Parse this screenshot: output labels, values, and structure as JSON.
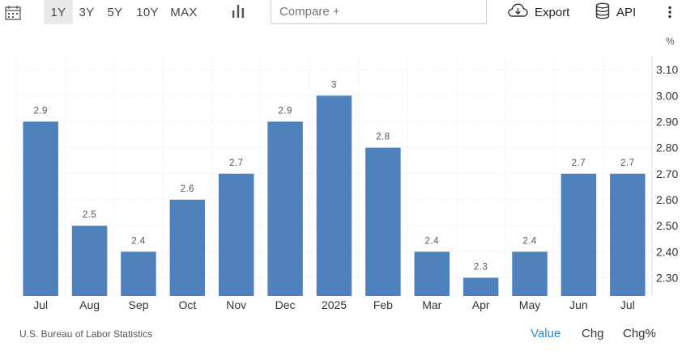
{
  "toolbar": {
    "calendar_icon": "calendar-icon",
    "ranges": [
      {
        "label": "1Y",
        "active": true
      },
      {
        "label": "3Y",
        "active": false
      },
      {
        "label": "5Y",
        "active": false
      },
      {
        "label": "10Y",
        "active": false
      },
      {
        "label": "MAX",
        "active": false
      }
    ],
    "chart_type_icon": "bar-chart-icon",
    "compare_placeholder": "Compare +",
    "export_label": "Export",
    "api_label": "API",
    "more_icon": "more-vertical-icon"
  },
  "unit_label": "%",
  "source": "U.S. Bureau of Labor Statistics",
  "view_tabs": [
    {
      "label": "Value",
      "active": true
    },
    {
      "label": "Chg",
      "active": false
    },
    {
      "label": "Chg%",
      "active": false
    }
  ],
  "colors": {
    "bar": "#4f81bd",
    "active_tab": "#2e8bd0",
    "gridline": "#e6e6e6"
  },
  "chart_data": {
    "type": "bar",
    "categories": [
      "Jul",
      "Aug",
      "Sep",
      "Oct",
      "Nov",
      "Dec",
      "2025",
      "Feb",
      "Mar",
      "Apr",
      "May",
      "Jun",
      "Jul"
    ],
    "values": [
      2.9,
      2.5,
      2.4,
      2.6,
      2.7,
      2.9,
      3,
      2.8,
      2.4,
      2.3,
      2.4,
      2.7,
      2.7
    ],
    "data_labels": [
      "2.9",
      "2.5",
      "2.4",
      "2.6",
      "2.7",
      "2.9",
      "3",
      "2.8",
      "2.4",
      "2.3",
      "2.4",
      "2.7",
      "2.7"
    ],
    "y_ticks": [
      "3.10",
      "3.00",
      "2.90",
      "2.80",
      "2.70",
      "2.60",
      "2.50",
      "2.40",
      "2.30"
    ],
    "ylim": [
      2.23,
      3.15
    ],
    "y_axis_side": "right",
    "grid": true,
    "title": "",
    "xlabel": "",
    "ylabel": "%"
  }
}
